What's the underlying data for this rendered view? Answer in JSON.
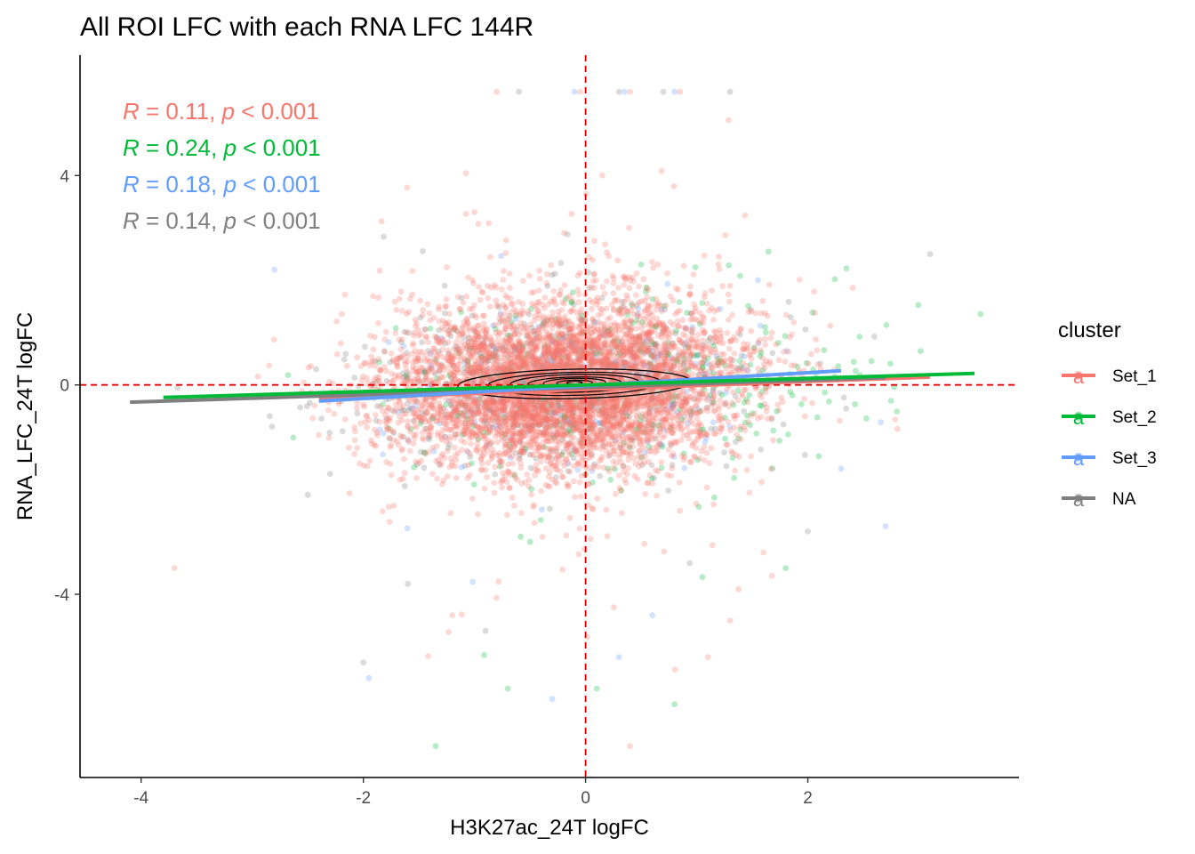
{
  "chart_data": {
    "type": "scatter",
    "title": "All ROI LFC with each RNA LFC 144R",
    "xlabel": "H3K27ac_24T logFC",
    "ylabel": "RNA_LFC_24T logFC",
    "xlim": [
      -4.55,
      3.9
    ],
    "ylim": [
      -7.5,
      6.3
    ],
    "x_ticks": [
      -4,
      -2,
      0,
      2
    ],
    "y_ticks": [
      -4,
      0,
      4
    ],
    "x_tick_labels": [
      "-4",
      "-2",
      "0",
      "2"
    ],
    "y_tick_labels": [
      "-4",
      "0",
      "4"
    ],
    "reference_lines": {
      "x": 0,
      "y": 0,
      "color": "#dd0000",
      "style": "dashed"
    },
    "grid": false,
    "legend": {
      "title": "cluster",
      "placement": "right",
      "entries": [
        {
          "name": "Set_1",
          "color": "#f8766d",
          "key_glyph": "a"
        },
        {
          "name": "Set_2",
          "color": "#00ba38",
          "key_glyph": "a"
        },
        {
          "name": "Set_3",
          "color": "#619cff",
          "key_glyph": "a"
        },
        {
          "name": "NA",
          "color": "#7f7f7f",
          "key_glyph": "a"
        }
      ]
    },
    "correlations": [
      {
        "group": "Set_1",
        "r_symbol": "R",
        "eq": " = 0.11, ",
        "p_symbol": "p",
        "p_text": " < 0.001",
        "color": "#f8766d"
      },
      {
        "group": "Set_2",
        "r_symbol": "R",
        "eq": " = 0.24, ",
        "p_symbol": "p",
        "p_text": " < 0.001",
        "color": "#00ba38"
      },
      {
        "group": "Set_3",
        "r_symbol": "R",
        "eq": " = 0.18, ",
        "p_symbol": "p",
        "p_text": " < 0.001",
        "color": "#619cff"
      },
      {
        "group": "NA",
        "r_symbol": "R",
        "eq": " = 0.14, ",
        "p_symbol": "p",
        "p_text": " < 0.001",
        "color": "#7f7f7f"
      }
    ],
    "series": [
      {
        "name": "Set_1",
        "color": "#f8766d",
        "cloud": {
          "n": 5200,
          "mean_x": -0.2,
          "sd_x": 0.8,
          "sd_y": 0.65,
          "slope": 0.09
        },
        "fit": {
          "x": [
            -2.4,
            3.1
          ],
          "y": [
            -0.27,
            0.15
          ]
        }
      },
      {
        "name": "Set_2",
        "color": "#00ba38",
        "cloud": {
          "n": 350,
          "mean_x": 0.4,
          "sd_x": 1.0,
          "sd_y": 0.7,
          "slope": 0.09
        },
        "fit": {
          "x": [
            -3.8,
            3.5
          ],
          "y": [
            -0.24,
            0.22
          ]
        }
      },
      {
        "name": "Set_3",
        "color": "#619cff",
        "cloud": {
          "n": 260,
          "mean_x": 0.0,
          "sd_x": 0.8,
          "sd_y": 0.55,
          "slope": 0.1
        },
        "fit": {
          "x": [
            -2.4,
            2.3
          ],
          "y": [
            -0.31,
            0.27
          ]
        }
      },
      {
        "name": "NA",
        "color": "#7f7f7f",
        "cloud": {
          "n": 650,
          "mean_x": -0.3,
          "sd_x": 0.9,
          "sd_y": 0.6,
          "slope": 0.1
        },
        "fit": {
          "x": [
            -4.1,
            2.7
          ],
          "y": [
            -0.33,
            0.14
          ]
        }
      }
    ],
    "outliers": {
      "saturated_top_y": 5.6,
      "saturated_top_x": [
        -0.8,
        -0.6,
        -0.1,
        -0.05,
        0.3,
        0.35,
        0.4,
        0.7,
        0.8,
        0.85,
        1.3
      ],
      "points": [
        [
          -1.0,
          3.3
        ],
        [
          3.1,
          2.5
        ],
        [
          -2.8,
          2.2
        ],
        [
          0.5,
          2.3
        ],
        [
          -3.7,
          -3.5
        ],
        [
          -2.0,
          -5.3
        ],
        [
          -1.95,
          -5.6
        ],
        [
          -1.35,
          -6.9
        ],
        [
          0.4,
          -6.9
        ],
        [
          2.0,
          -2.8
        ],
        [
          2.7,
          -2.7
        ],
        [
          1.8,
          -3.5
        ],
        [
          -1.2,
          -4.4
        ],
        [
          -0.9,
          -4.7
        ],
        [
          -0.3,
          -6.0
        ],
        [
          0.1,
          -5.8
        ],
        [
          1.1,
          -5.2
        ],
        [
          -1.6,
          -3.8
        ],
        [
          0.6,
          -4.4
        ],
        [
          -0.5,
          -3.0
        ],
        [
          1.3,
          -4.5
        ],
        [
          -2.3,
          -1.7
        ],
        [
          0.3,
          -5.2
        ],
        [
          -0.7,
          -5.8
        ],
        [
          1.6,
          -3.2
        ],
        [
          -2.5,
          -2.1
        ],
        [
          2.3,
          -1.6
        ],
        [
          0.8,
          -6.1
        ]
      ]
    },
    "density_contours": [
      {
        "cx": -0.1,
        "cy": 0.02,
        "rx": 1.05,
        "ry": 0.28
      },
      {
        "cx": -0.1,
        "cy": 0.02,
        "rx": 0.78,
        "ry": 0.22
      },
      {
        "cx": -0.1,
        "cy": 0.03,
        "rx": 0.58,
        "ry": 0.17
      },
      {
        "cx": -0.1,
        "cy": 0.03,
        "rx": 0.42,
        "ry": 0.12
      },
      {
        "cx": -0.1,
        "cy": 0.04,
        "rx": 0.28,
        "ry": 0.085
      },
      {
        "cx": -0.1,
        "cy": 0.04,
        "rx": 0.16,
        "ry": 0.05
      },
      {
        "cx": -0.1,
        "cy": 0.04,
        "rx": 0.07,
        "ry": 0.025
      }
    ]
  }
}
